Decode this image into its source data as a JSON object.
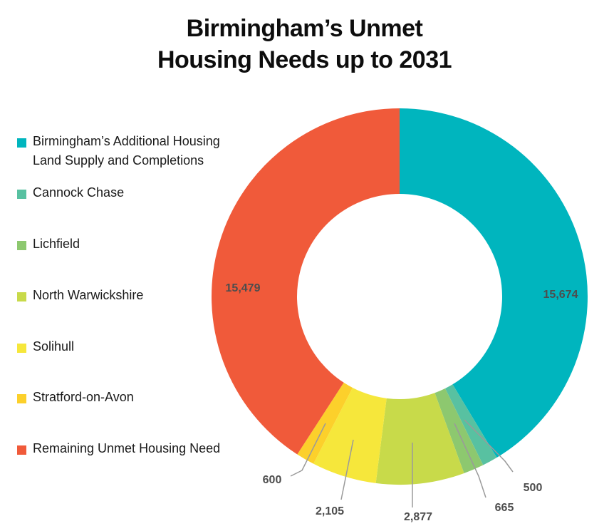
{
  "chart_data": {
    "type": "pie",
    "title_lines": [
      "Birmingham’s Unmet",
      "Housing Needs up to 2031"
    ],
    "categories": [
      "Birmingham’s Additional Housing Land Supply and Completions",
      "Cannock Chase",
      "Lichfield",
      "North Warwickshire",
      "Solihull",
      "Stratford-on-Avon",
      "Remaining Unmet Housing Need"
    ],
    "values": [
      15674,
      500,
      665,
      2877,
      2105,
      600,
      15479
    ],
    "value_labels": [
      "15,674",
      "500",
      "665",
      "2,877",
      "2,105",
      "600",
      "15,479"
    ],
    "colors": [
      "#00b5be",
      "#58c1a1",
      "#8dc86f",
      "#c8da4a",
      "#f6e73b",
      "#fcd02b",
      "#f05a3a"
    ],
    "donut": true,
    "legend_position": "left"
  },
  "legend": {
    "items": [
      {
        "label_lines": [
          "Birmingham’s Additional Housing",
          "Land Supply and Completions"
        ],
        "color": "#00b5be"
      },
      {
        "label_lines": [
          "Cannock Chase"
        ],
        "color": "#58c1a1"
      },
      {
        "label_lines": [
          "Lichfield"
        ],
        "color": "#8dc86f"
      },
      {
        "label_lines": [
          "North Warwickshire"
        ],
        "color": "#c8da4a"
      },
      {
        "label_lines": [
          "Solihull"
        ],
        "color": "#f6e73b"
      },
      {
        "label_lines": [
          "Stratford-on-Avon"
        ],
        "color": "#fcd02b"
      },
      {
        "label_lines": [
          "Remaining Unmet Housing Need"
        ],
        "color": "#f05a3a"
      }
    ]
  }
}
